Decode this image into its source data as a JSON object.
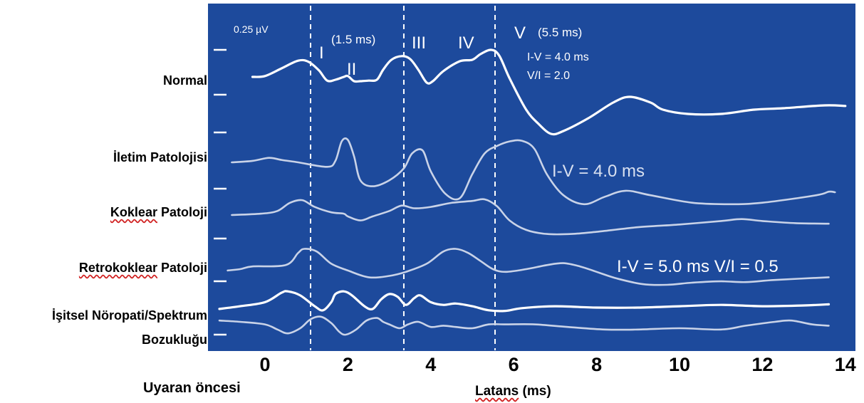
{
  "chart_data": {
    "type": "line",
    "xlabel_prefix": "Latans",
    "xlabel_suffix": "(ms)",
    "pre_stimulus_label": "Uyaran öncesi",
    "xticks": [
      0,
      2,
      4,
      6,
      8,
      10,
      12,
      14
    ],
    "xlim": [
      -1.3,
      14.2
    ],
    "colors": {
      "panel": "#1d4a9c",
      "trace_white": "#ffffff",
      "trace_light": "#c9d3e8",
      "text_light": "#d8e0f0"
    },
    "reference_lines_ms": [
      1.1,
      3.35,
      5.55
    ],
    "scale_label": "0.25 µV",
    "annotations": {
      "wave_I": "I",
      "wave_II": "II",
      "wave_III": "III",
      "wave_IV": "IV",
      "wave_V": "V",
      "latency_I": "(1.5 ms)",
      "latency_V": "(5.5 ms)",
      "normal_iv": "I-V = 4.0 ms",
      "normal_ratio": "V/I = 2.0",
      "conductive_iv": "I-V = 4.0 ms",
      "retro_iv": "I-V = 5.0 ms  V/I = 0.5"
    },
    "series": [
      {
        "name": "Normal",
        "name_underlined": "",
        "points": [
          [
            -0.3,
            0.05
          ],
          [
            0,
            0.08
          ],
          [
            0.4,
            0.35
          ],
          [
            0.8,
            0.62
          ],
          [
            1.05,
            0.58
          ],
          [
            1.3,
            0.28
          ],
          [
            1.5,
            -0.08
          ],
          [
            1.7,
            -0.05
          ],
          [
            1.9,
            0.05
          ],
          [
            2.0,
            0.08
          ],
          [
            2.15,
            -0.1
          ],
          [
            2.3,
            -0.1
          ],
          [
            2.5,
            -0.08
          ],
          [
            2.7,
            -0.05
          ],
          [
            2.85,
            0.3
          ],
          [
            3.05,
            0.65
          ],
          [
            3.3,
            0.78
          ],
          [
            3.5,
            0.68
          ],
          [
            3.7,
            0.3
          ],
          [
            3.9,
            -0.15
          ],
          [
            4.05,
            -0.1
          ],
          [
            4.3,
            0.25
          ],
          [
            4.7,
            0.6
          ],
          [
            5.0,
            0.65
          ],
          [
            5.2,
            0.85
          ],
          [
            5.45,
            1.0
          ],
          [
            5.65,
            0.8
          ],
          [
            5.9,
            0.0
          ],
          [
            6.3,
            -1.1
          ],
          [
            6.6,
            -1.6
          ],
          [
            6.9,
            -1.95
          ],
          [
            7.2,
            -1.85
          ],
          [
            7.8,
            -1.4
          ],
          [
            8.4,
            -0.85
          ],
          [
            8.8,
            -0.65
          ],
          [
            9.3,
            -0.85
          ],
          [
            9.6,
            -1.1
          ],
          [
            10.2,
            -1.25
          ],
          [
            11.0,
            -1.25
          ],
          [
            11.8,
            -1.1
          ],
          [
            12.5,
            -1.05
          ],
          [
            13.5,
            -0.95
          ],
          [
            14.0,
            -0.97
          ]
        ]
      },
      {
        "name": "İletim Patolojisi",
        "name_underlined": "",
        "points": [
          [
            -0.8,
            0.0
          ],
          [
            -0.3,
            0.05
          ],
          [
            0.1,
            0.15
          ],
          [
            0.4,
            0.08
          ],
          [
            0.8,
            0.0
          ],
          [
            1.5,
            -0.15
          ],
          [
            1.7,
            0.05
          ],
          [
            1.85,
            0.7
          ],
          [
            2.0,
            0.75
          ],
          [
            2.15,
            0.2
          ],
          [
            2.3,
            -0.6
          ],
          [
            2.6,
            -0.8
          ],
          [
            3.0,
            -0.6
          ],
          [
            3.35,
            -0.2
          ],
          [
            3.55,
            0.3
          ],
          [
            3.8,
            0.4
          ],
          [
            4.0,
            -0.3
          ],
          [
            4.35,
            -1.05
          ],
          [
            4.7,
            -1.2
          ],
          [
            5.0,
            -0.4
          ],
          [
            5.3,
            0.3
          ],
          [
            5.6,
            0.55
          ],
          [
            5.9,
            0.7
          ],
          [
            6.2,
            0.72
          ],
          [
            6.5,
            0.45
          ],
          [
            6.8,
            -0.4
          ],
          [
            7.2,
            -1.1
          ],
          [
            7.7,
            -1.4
          ],
          [
            8.2,
            -1.15
          ],
          [
            8.7,
            -0.95
          ],
          [
            9.3,
            -1.1
          ],
          [
            10.3,
            -1.35
          ],
          [
            11.2,
            -1.4
          ],
          [
            12.0,
            -1.35
          ],
          [
            13.3,
            -1.1
          ],
          [
            13.6,
            -0.98
          ],
          [
            13.75,
            -1.0
          ]
        ]
      },
      {
        "name": "Patoloji",
        "name_underlined": "Koklear",
        "points": [
          [
            -0.8,
            0.0
          ],
          [
            -0.1,
            0.05
          ],
          [
            0.3,
            0.15
          ],
          [
            0.6,
            0.45
          ],
          [
            0.9,
            0.55
          ],
          [
            1.2,
            0.3
          ],
          [
            1.6,
            0.1
          ],
          [
            1.9,
            0.05
          ],
          [
            2.0,
            -0.05
          ],
          [
            2.3,
            -0.2
          ],
          [
            2.6,
            -0.05
          ],
          [
            3.0,
            0.15
          ],
          [
            3.3,
            0.35
          ],
          [
            3.6,
            0.25
          ],
          [
            4.0,
            0.3
          ],
          [
            4.5,
            0.45
          ],
          [
            5.0,
            0.52
          ],
          [
            5.3,
            0.58
          ],
          [
            5.6,
            0.32
          ],
          [
            5.9,
            -0.2
          ],
          [
            6.3,
            -0.55
          ],
          [
            6.8,
            -0.7
          ],
          [
            7.4,
            -0.7
          ],
          [
            8.0,
            -0.62
          ],
          [
            9.0,
            -0.45
          ],
          [
            10.0,
            -0.35
          ],
          [
            11.0,
            -0.22
          ],
          [
            11.5,
            -0.15
          ],
          [
            12.0,
            -0.22
          ],
          [
            12.8,
            -0.3
          ],
          [
            13.6,
            -0.32
          ]
        ]
      },
      {
        "name": "Patoloji",
        "name_underlined": "Retrokoklear",
        "points": [
          [
            -0.9,
            -0.05
          ],
          [
            -0.6,
            0.0
          ],
          [
            -0.3,
            0.1
          ],
          [
            0.5,
            0.15
          ],
          [
            0.8,
            0.6
          ],
          [
            0.95,
            0.75
          ],
          [
            1.25,
            0.65
          ],
          [
            1.6,
            0.2
          ],
          [
            2.0,
            -0.05
          ],
          [
            2.5,
            -0.3
          ],
          [
            3.0,
            -0.25
          ],
          [
            3.4,
            -0.1
          ],
          [
            3.9,
            0.2
          ],
          [
            4.3,
            0.65
          ],
          [
            4.6,
            0.75
          ],
          [
            4.9,
            0.6
          ],
          [
            5.2,
            0.3
          ],
          [
            5.5,
            0.0
          ],
          [
            5.8,
            -0.1
          ],
          [
            6.3,
            0.0
          ],
          [
            6.8,
            0.15
          ],
          [
            7.2,
            0.22
          ],
          [
            7.6,
            0.1
          ],
          [
            8.0,
            -0.1
          ],
          [
            8.5,
            -0.35
          ],
          [
            9.1,
            -0.55
          ],
          [
            9.7,
            -0.58
          ],
          [
            10.3,
            -0.5
          ],
          [
            11.0,
            -0.45
          ],
          [
            11.6,
            -0.48
          ],
          [
            12.3,
            -0.4
          ],
          [
            13.6,
            -0.3
          ]
        ]
      },
      {
        "name": "İşitsel Nöropati/Spektrum",
        "name_line2": "Bozukluğu",
        "name_underlined": "",
        "color_key": "trace_white",
        "points": [
          [
            -1.1,
            -0.05
          ],
          [
            -0.6,
            0.05
          ],
          [
            0.0,
            0.2
          ],
          [
            0.4,
            0.55
          ],
          [
            0.55,
            0.6
          ],
          [
            0.85,
            0.45
          ],
          [
            1.2,
            0.05
          ],
          [
            1.4,
            -0.1
          ],
          [
            1.6,
            0.2
          ],
          [
            1.7,
            0.5
          ],
          [
            1.9,
            0.6
          ],
          [
            2.1,
            0.45
          ],
          [
            2.4,
            0.05
          ],
          [
            2.6,
            -0.05
          ],
          [
            2.8,
            0.3
          ],
          [
            3.0,
            0.5
          ],
          [
            3.2,
            0.4
          ],
          [
            3.4,
            0.1
          ],
          [
            3.6,
            0.35
          ],
          [
            3.75,
            0.45
          ],
          [
            4.0,
            0.2
          ],
          [
            4.3,
            0.1
          ],
          [
            4.6,
            0.15
          ],
          [
            5.0,
            0.05
          ],
          [
            5.4,
            -0.1
          ],
          [
            5.8,
            -0.12
          ],
          [
            6.2,
            -0.02
          ],
          [
            7.0,
            0.05
          ],
          [
            8.0,
            0.0
          ],
          [
            9.0,
            0.0
          ],
          [
            10.0,
            0.05
          ],
          [
            11.0,
            0.1
          ],
          [
            12.0,
            0.05
          ],
          [
            13.0,
            0.08
          ],
          [
            13.6,
            0.12
          ]
        ]
      },
      {
        "name": "",
        "name_underlined": "",
        "color_key": "trace_light",
        "points": [
          [
            -1.1,
            0.05
          ],
          [
            -0.6,
            0.0
          ],
          [
            0.0,
            -0.1
          ],
          [
            0.3,
            -0.3
          ],
          [
            0.55,
            -0.45
          ],
          [
            0.85,
            -0.25
          ],
          [
            1.1,
            0.1
          ],
          [
            1.35,
            0.2
          ],
          [
            1.6,
            -0.05
          ],
          [
            1.8,
            -0.4
          ],
          [
            1.95,
            -0.5
          ],
          [
            2.2,
            -0.3
          ],
          [
            2.45,
            0.05
          ],
          [
            2.7,
            0.15
          ],
          [
            2.85,
            0.0
          ],
          [
            3.0,
            -0.1
          ],
          [
            3.25,
            -0.25
          ],
          [
            3.45,
            -0.1
          ],
          [
            3.7,
            0.0
          ],
          [
            4.0,
            -0.2
          ],
          [
            4.3,
            -0.15
          ],
          [
            4.6,
            -0.2
          ],
          [
            5.0,
            -0.25
          ],
          [
            5.4,
            -0.1
          ],
          [
            5.8,
            -0.1
          ],
          [
            6.5,
            -0.1
          ],
          [
            7.3,
            -0.2
          ],
          [
            8.2,
            -0.3
          ],
          [
            9.0,
            -0.3
          ],
          [
            10.0,
            -0.25
          ],
          [
            11.0,
            -0.3
          ],
          [
            11.6,
            -0.15
          ],
          [
            12.3,
            0.0
          ],
          [
            12.7,
            0.05
          ],
          [
            13.2,
            -0.1
          ],
          [
            13.6,
            -0.15
          ]
        ]
      }
    ]
  }
}
